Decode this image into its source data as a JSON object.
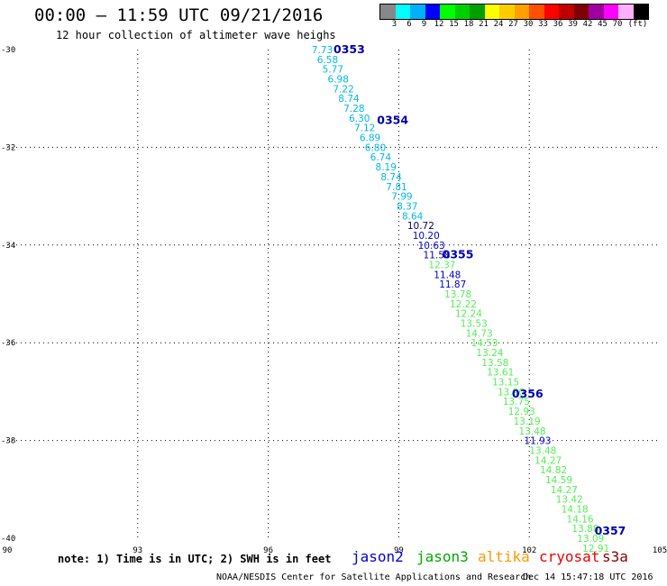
{
  "header": {
    "title": "00:00 – 11:59 UTC 09/21/2016",
    "subtitle": "12 hour collection of altimeter wave heighs"
  },
  "legend": {
    "colors": [
      "#888888",
      "#00ffff",
      "#00b0ff",
      "#0000ff",
      "#00ff00",
      "#00d000",
      "#00a000",
      "#ffff00",
      "#ffcc00",
      "#ffa000",
      "#ff5000",
      "#ff0000",
      "#c00000",
      "#800000",
      "#a000a0",
      "#ff00ff",
      "#ffb0ff",
      "#000000"
    ],
    "labels": [
      "3",
      "6",
      "9",
      "12",
      "15",
      "18",
      "21",
      "24",
      "27",
      "30",
      "33",
      "36",
      "39",
      "42",
      "45",
      "70",
      "(ft)"
    ]
  },
  "axes": {
    "x_ticks": [
      "90",
      "93",
      "96",
      "99",
      "102",
      "105"
    ],
    "y_ticks": [
      "-30",
      "-32",
      "-34",
      "-36",
      "-38",
      "-40"
    ]
  },
  "map": {
    "xlim": [
      90,
      105
    ],
    "ylim": [
      -40,
      -30
    ],
    "grid": "dotted",
    "track_colors": {
      "cyan": "#00b8e0",
      "blue": "#0000cc",
      "green": "#55ee55",
      "dark": "#000066"
    },
    "orbits": [
      {
        "label": "0353",
        "lon": 97.5,
        "lat": -30.0
      },
      {
        "label": "0354",
        "lon": 98.5,
        "lat": -31.45
      },
      {
        "label": "0355",
        "lon": 100.0,
        "lat": -34.2
      },
      {
        "label": "0356",
        "lon": 101.6,
        "lat": -37.05
      },
      {
        "label": "0357",
        "lon": 103.5,
        "lat": -39.85
      }
    ],
    "swh_track": [
      {
        "v": "7.73",
        "lat": -30.0,
        "c": "cyan"
      },
      {
        "v": "6.58",
        "lat": -30.2,
        "c": "cyan"
      },
      {
        "v": "5.77",
        "lat": -30.4,
        "c": "cyan"
      },
      {
        "v": "6.98",
        "lat": -30.6,
        "c": "cyan"
      },
      {
        "v": "7.22",
        "lat": -30.8,
        "c": "cyan"
      },
      {
        "v": "8.74",
        "lat": -31.0,
        "c": "cyan"
      },
      {
        "v": "7.28",
        "lat": -31.2,
        "c": "cyan"
      },
      {
        "v": "6.30",
        "lat": -31.4,
        "c": "cyan"
      },
      {
        "v": "7.12",
        "lat": -31.6,
        "c": "cyan"
      },
      {
        "v": "6.89",
        "lat": -31.8,
        "c": "cyan"
      },
      {
        "v": "6.80",
        "lat": -32.0,
        "c": "cyan"
      },
      {
        "v": "6.74",
        "lat": -32.2,
        "c": "cyan"
      },
      {
        "v": "8.19",
        "lat": -32.4,
        "c": "cyan"
      },
      {
        "v": "8.74",
        "lat": -32.6,
        "c": "cyan"
      },
      {
        "v": "7.81",
        "lat": -32.8,
        "c": "cyan"
      },
      {
        "v": "7.99",
        "lat": -33.0,
        "c": "cyan"
      },
      {
        "v": "8.37",
        "lat": -33.2,
        "c": "cyan"
      },
      {
        "v": "8.64",
        "lat": -33.4,
        "c": "cyan"
      },
      {
        "v": "10.72",
        "lat": -33.6,
        "c": "dark"
      },
      {
        "v": "10.20",
        "lat": -33.8,
        "c": "blue"
      },
      {
        "v": "10.63",
        "lat": -34.0,
        "c": "blue"
      },
      {
        "v": "11.58",
        "lat": -34.2,
        "c": "blue"
      },
      {
        "v": "12.37",
        "lat": -34.4,
        "c": "green"
      },
      {
        "v": "11.48",
        "lat": -34.6,
        "c": "blue"
      },
      {
        "v": "11.87",
        "lat": -34.8,
        "c": "blue"
      },
      {
        "v": "13.78",
        "lat": -35.0,
        "c": "green"
      },
      {
        "v": "12.22",
        "lat": -35.2,
        "c": "green"
      },
      {
        "v": "12.24",
        "lat": -35.4,
        "c": "green"
      },
      {
        "v": "13.53",
        "lat": -35.6,
        "c": "green"
      },
      {
        "v": "14.73",
        "lat": -35.8,
        "c": "green"
      },
      {
        "v": "14.53",
        "lat": -36.0,
        "c": "green"
      },
      {
        "v": "13.24",
        "lat": -36.2,
        "c": "green"
      },
      {
        "v": "13.58",
        "lat": -36.4,
        "c": "green"
      },
      {
        "v": "13.61",
        "lat": -36.6,
        "c": "green"
      },
      {
        "v": "13.15",
        "lat": -36.8,
        "c": "green"
      },
      {
        "v": "13.90",
        "lat": -37.0,
        "c": "green"
      },
      {
        "v": "13.75",
        "lat": -37.2,
        "c": "green"
      },
      {
        "v": "12.93",
        "lat": -37.4,
        "c": "green"
      },
      {
        "v": "13.19",
        "lat": -37.6,
        "c": "green"
      },
      {
        "v": "13.48",
        "lat": -37.8,
        "c": "green"
      },
      {
        "v": "11.93",
        "lat": -38.0,
        "c": "blue"
      },
      {
        "v": "13.48",
        "lat": -38.2,
        "c": "green"
      },
      {
        "v": "14.27",
        "lat": -38.4,
        "c": "green"
      },
      {
        "v": "14.82",
        "lat": -38.6,
        "c": "green"
      },
      {
        "v": "14.59",
        "lat": -38.8,
        "c": "green"
      },
      {
        "v": "14.27",
        "lat": -39.0,
        "c": "green"
      },
      {
        "v": "13.42",
        "lat": -39.2,
        "c": "green"
      },
      {
        "v": "14.18",
        "lat": -39.4,
        "c": "green"
      },
      {
        "v": "14.16",
        "lat": -39.6,
        "c": "green"
      },
      {
        "v": "13.88",
        "lat": -39.8,
        "c": "green"
      },
      {
        "v": "13.09",
        "lat": -40.0,
        "c": "green"
      },
      {
        "v": "12.91",
        "lat": -40.2,
        "c": "green"
      }
    ]
  },
  "note": "note: 1) Time is in UTC; 2) SWH is in feet",
  "satellites": [
    {
      "name": "jason2",
      "color": "#0000dd"
    },
    {
      "name": "jason3",
      "color": "#00aa00"
    },
    {
      "name": "altika",
      "color": "#ff9900"
    },
    {
      "name": "cryosat",
      "color": "#ee0000"
    },
    {
      "name": "s3a",
      "color": "#880000"
    }
  ],
  "footer": {
    "credit": "NOAA/NESDIS Center for Satellite Applications and Research",
    "timestamp": "Dec 14 15:47:18 UTC 2016"
  }
}
